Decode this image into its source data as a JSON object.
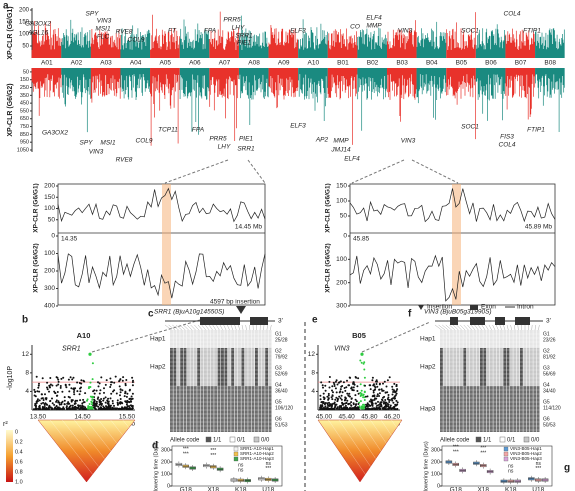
{
  "panel_labels": {
    "a": "a",
    "b": "b",
    "c": "c",
    "d": "d",
    "e": "e",
    "f": "f",
    "g": "g"
  },
  "a": {
    "ylabel_top": "XP-CLR (G6/G1)",
    "ylabel_bottom": "XP-CLR (G6/G2)",
    "yticks_top": [
      200,
      150,
      100,
      50
    ],
    "yticks_bottom": [
      50,
      150,
      250,
      350,
      450,
      550,
      650,
      750,
      850,
      950,
      1050
    ],
    "chromosomes": [
      "A01",
      "A02",
      "A03",
      "A04",
      "A05",
      "A06",
      "A07",
      "A08",
      "A09",
      "A10",
      "B01",
      "B02",
      "B03",
      "B04",
      "B05",
      "B06",
      "B07",
      "B08"
    ],
    "genes_top": [
      "GA3OX2",
      "AGL16",
      "SPY",
      "VIN3",
      "MSI1",
      "FLC",
      "RVE8",
      "COL9",
      "FT",
      "FPA",
      "PRR5",
      "LHY",
      "SRR1",
      "PIE1",
      "ELF3",
      "CO",
      "ELF4",
      "MMP",
      "VIN3",
      "SOC1",
      "COL4",
      "FTIP1"
    ],
    "genes_bottom": [
      "GA3OX2",
      "SPY",
      "MSI1",
      "VIN3",
      "RVE8",
      "COL9",
      "TCP11",
      "FPA",
      "PRR5",
      "LHY",
      "PIE1",
      "SRR1",
      "ELF3",
      "AP2",
      "MMP",
      "JMJ14",
      "ELF4",
      "VIN3",
      "SOC1",
      "FIS3",
      "COL4",
      "FTIP1"
    ]
  },
  "zoom_left": {
    "ylabel_top": "XP-CLR (G6/G1)",
    "ylabel_bottom": "XP-CLR (G6/G2)",
    "yticks_top": [
      200,
      150,
      100,
      50
    ],
    "yticks_bottom": [
      0,
      100,
      200,
      300,
      400
    ],
    "start": "14.35",
    "end": "14.45 Mb"
  },
  "zoom_right": {
    "ylabel_top": "XP-CLR (G6/G1)",
    "ylabel_bottom": "XP-CLR (G6/G2)",
    "yticks_top": [
      150,
      100,
      50
    ],
    "yticks_bottom": [
      0,
      100,
      200,
      300
    ],
    "start": "45.85",
    "end": "45.89 Mb"
  },
  "b": {
    "title": "A10",
    "gene": "SRR1",
    "ylabel": "-log10P",
    "yticks": [
      4,
      8,
      12
    ],
    "xticks": [
      "13.50",
      "14.50",
      "15.50"
    ],
    "xunit": "Mb",
    "r2_label": "r²",
    "r2_ticks": [
      "0",
      "0.2",
      "0.4",
      "0.6",
      "0.8",
      "1.0"
    ]
  },
  "c": {
    "gene": "SRR1 (BjuA10g14550S)",
    "insertion": "4597 bp insertion",
    "end3": "3'",
    "haplotypes": [
      "Hap1",
      "Hap2",
      "Hap3"
    ],
    "groups": [
      {
        "name": "G1",
        "count": "25/28"
      },
      {
        "name": "G2",
        "count": "79/92"
      },
      {
        "name": "G3",
        "count": "52/69"
      },
      {
        "name": "G4",
        "count": "36/40"
      },
      {
        "name": "G5",
        "count": "106/120"
      },
      {
        "name": "G6",
        "count": "51/53"
      }
    ],
    "allele_code": "Allele code",
    "alleles": [
      "1/1",
      "0/1",
      "0/0"
    ]
  },
  "d": {
    "ylabel": "Flowering time (Days)",
    "yticks": [
      0,
      100,
      200,
      300
    ],
    "categories": [
      "G18",
      "X18",
      "K18",
      "U18"
    ],
    "legend": [
      "SRR1-A10-Hap1",
      "SRR1-A10-Hap2",
      "SRR1-A10-Hap3"
    ],
    "colors": [
      "#f3f3f3",
      "#f2c14e",
      "#3fa34d"
    ],
    "medians": [
      [
        180,
        165,
        150
      ],
      [
        170,
        160,
        140
      ],
      [
        50,
        48,
        45
      ],
      [
        60,
        55,
        50
      ]
    ],
    "significance": [
      [
        "***",
        "***"
      ],
      [
        "***",
        "***"
      ],
      [
        "ns",
        "ns"
      ],
      [
        "***",
        "ns"
      ]
    ]
  },
  "e": {
    "title": "B05",
    "gene": "VIN3",
    "xticks": [
      "45.00",
      "45.40",
      "45.80",
      "46.20"
    ],
    "xunit": "Mb",
    "yticks": [
      4,
      8,
      12
    ]
  },
  "f": {
    "gene": "VIN3 (BjuB05g31990S)",
    "legend": [
      "Insertion",
      "Exon",
      "Intron"
    ],
    "end3": "3'",
    "haplotypes": [
      "Hap1",
      "Hap2",
      "Hap3"
    ],
    "groups": [
      {
        "name": "G1",
        "count": "23/26"
      },
      {
        "name": "G2",
        "count": "81/92"
      },
      {
        "name": "G3",
        "count": "56/69"
      },
      {
        "name": "G4",
        "count": "34/40"
      },
      {
        "name": "G5",
        "count": "114/120"
      },
      {
        "name": "G6",
        "count": "50/53"
      }
    ],
    "allele_code": "Allele code",
    "alleles": [
      "1/1",
      "0/1",
      "0/0"
    ]
  },
  "g": {
    "ylabel": "Flowering time (Days)",
    "yticks": [
      0,
      100,
      200,
      300
    ],
    "categories": [
      "G18",
      "X18",
      "K18",
      "U18"
    ],
    "legend": [
      "VIN3-B05-Hap1",
      "VIN3-B05-Hap2",
      "VIN3-B05-Hap3"
    ],
    "colors": [
      "#5b9bd5",
      "#f4a6a6",
      "#d9a3d9"
    ],
    "medians": [
      [
        200,
        180,
        130
      ],
      [
        190,
        170,
        120
      ],
      [
        40,
        40,
        40
      ],
      [
        60,
        50,
        50
      ]
    ],
    "significance": [
      [
        "***",
        "***"
      ],
      [
        "***",
        "***"
      ],
      [
        "ns",
        "ns"
      ],
      [
        "***",
        "ns"
      ]
    ]
  }
}
